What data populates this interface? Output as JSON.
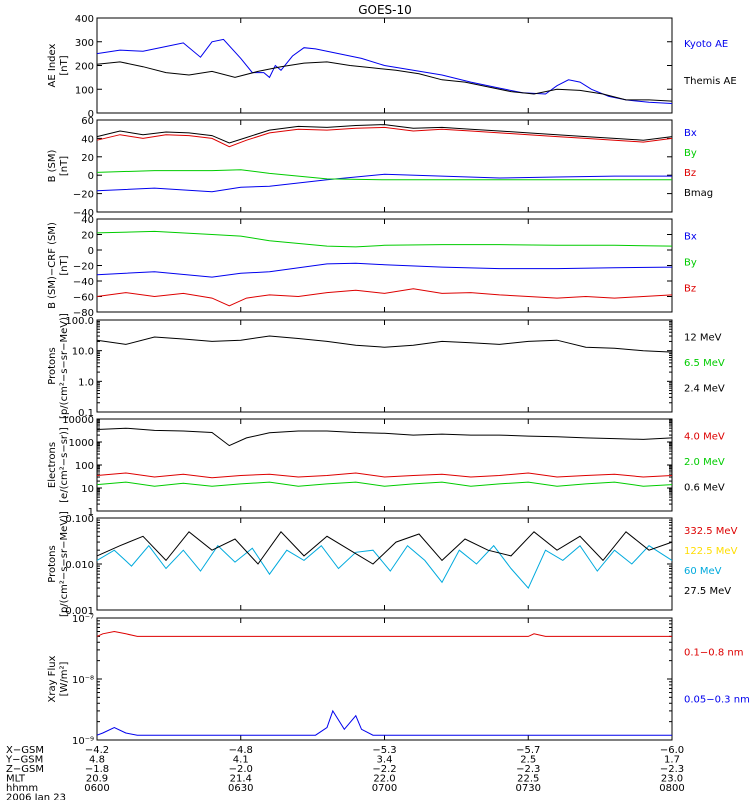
{
  "title": "GOES-10",
  "chart_data": [
    {
      "type": "line",
      "ylabel": [
        "AE Index",
        "[nT]"
      ],
      "ylim": [
        0,
        400
      ],
      "yscale": "linear",
      "yticks": [
        0,
        100,
        200,
        300,
        400
      ],
      "ytick_labels": [
        "0",
        "100",
        "200",
        "300",
        "400"
      ],
      "series": [
        {
          "name": "Kyoto AE",
          "color": "#0000ee",
          "x": [
            0,
            4,
            8,
            12,
            15,
            18,
            20,
            22,
            25,
            27,
            29,
            30,
            31,
            32,
            34,
            36,
            38,
            40,
            42,
            46,
            50,
            55,
            60,
            65,
            70,
            74,
            78,
            80,
            82,
            84,
            86,
            89,
            92,
            96,
            100
          ],
          "values": [
            250,
            265,
            260,
            280,
            295,
            235,
            300,
            310,
            230,
            170,
            170,
            150,
            200,
            180,
            240,
            275,
            270,
            260,
            250,
            230,
            200,
            180,
            160,
            130,
            105,
            85,
            80,
            115,
            140,
            130,
            100,
            70,
            55,
            45,
            40
          ]
        },
        {
          "name": "Themis AE",
          "color": "#000000",
          "x": [
            0,
            4,
            8,
            12,
            16,
            20,
            24,
            28,
            32,
            36,
            40,
            44,
            48,
            52,
            56,
            60,
            64,
            68,
            72,
            76,
            80,
            84,
            88,
            92,
            96,
            100
          ],
          "values": [
            205,
            215,
            195,
            170,
            160,
            175,
            150,
            175,
            195,
            210,
            215,
            200,
            190,
            180,
            165,
            140,
            130,
            110,
            90,
            80,
            100,
            95,
            80,
            55,
            55,
            50
          ]
        }
      ],
      "legend": [
        "Kyoto AE",
        "Themis AE"
      ]
    },
    {
      "type": "line",
      "ylabel": [
        "B (SM)",
        "[nT]"
      ],
      "ylim": [
        -40,
        60
      ],
      "yscale": "linear",
      "yticks": [
        -40,
        -20,
        0,
        20,
        40,
        60
      ],
      "ytick_labels": [
        "−40",
        "−20",
        "0",
        "20",
        "40",
        "60"
      ],
      "series": [
        {
          "name": "Bx",
          "color": "#0000ee",
          "x": [
            0,
            10,
            20,
            25,
            30,
            40,
            50,
            60,
            70,
            80,
            90,
            100
          ],
          "values": [
            -17,
            -14,
            -18,
            -13,
            -12,
            -5,
            1,
            -1,
            -3,
            -2,
            -1,
            -1
          ]
        },
        {
          "name": "By",
          "color": "#00cc00",
          "x": [
            0,
            10,
            20,
            25,
            30,
            40,
            50,
            60,
            70,
            80,
            90,
            100
          ],
          "values": [
            3,
            5,
            5,
            6,
            2,
            -4,
            -5,
            -5,
            -5,
            -5,
            -5,
            -5
          ]
        },
        {
          "name": "Bz",
          "color": "#dd0000",
          "x": [
            0,
            4,
            8,
            12,
            16,
            20,
            23,
            26,
            30,
            35,
            40,
            45,
            50,
            55,
            60,
            65,
            70,
            75,
            80,
            85,
            90,
            95,
            100
          ],
          "values": [
            38,
            44,
            40,
            44,
            43,
            40,
            31,
            38,
            46,
            50,
            49,
            51,
            52,
            48,
            50,
            48,
            46,
            44,
            42,
            40,
            38,
            36,
            40
          ]
        },
        {
          "name": "Bmag",
          "color": "#000000",
          "x": [
            0,
            4,
            8,
            12,
            16,
            20,
            23,
            26,
            30,
            35,
            40,
            45,
            50,
            55,
            60,
            65,
            70,
            75,
            80,
            85,
            90,
            95,
            100
          ],
          "values": [
            42,
            48,
            44,
            47,
            46,
            43,
            35,
            41,
            49,
            53,
            52,
            54,
            55,
            51,
            52,
            50,
            48,
            46,
            44,
            42,
            40,
            38,
            42
          ]
        }
      ],
      "legend": [
        "Bx",
        "By",
        "Bz",
        "Bmag"
      ]
    },
    {
      "type": "line",
      "ylabel": [
        "B (SM)−CRF (SM)",
        "[nT]"
      ],
      "ylim": [
        -80,
        40
      ],
      "yscale": "linear",
      "yticks": [
        -80,
        -60,
        -40,
        -20,
        0,
        20,
        40
      ],
      "ytick_labels": [
        "−80",
        "−60",
        "−40",
        "−20",
        "0",
        "20",
        "40"
      ],
      "series": [
        {
          "name": "Bx",
          "color": "#0000ee",
          "x": [
            0,
            10,
            20,
            25,
            30,
            40,
            45,
            50,
            60,
            70,
            80,
            90,
            100
          ],
          "values": [
            -32,
            -28,
            -35,
            -30,
            -28,
            -18,
            -17,
            -19,
            -22,
            -24,
            -24,
            -23,
            -22
          ]
        },
        {
          "name": "By",
          "color": "#00cc00",
          "x": [
            0,
            10,
            20,
            25,
            30,
            40,
            45,
            50,
            60,
            70,
            80,
            90,
            100
          ],
          "values": [
            22,
            24,
            20,
            18,
            12,
            5,
            4,
            6,
            7,
            7,
            6,
            6,
            5
          ]
        },
        {
          "name": "Bz",
          "color": "#dd0000",
          "x": [
            0,
            5,
            10,
            15,
            20,
            23,
            26,
            30,
            35,
            40,
            45,
            50,
            55,
            60,
            65,
            70,
            75,
            80,
            85,
            90,
            95,
            100
          ],
          "values": [
            -60,
            -55,
            -60,
            -56,
            -62,
            -72,
            -62,
            -58,
            -60,
            -55,
            -52,
            -56,
            -50,
            -56,
            -55,
            -58,
            -60,
            -62,
            -60,
            -62,
            -60,
            -58
          ]
        }
      ],
      "legend": [
        "Bx",
        "By",
        "Bz"
      ]
    },
    {
      "type": "line",
      "ylabel": [
        "Protons",
        "[p/(cm²−s−sr−MeV)]"
      ],
      "ylim": [
        0.1,
        100
      ],
      "yscale": "log",
      "yticks": [
        0.1,
        1,
        10,
        100
      ],
      "ytick_labels": [
        "0.1",
        "1.0",
        "10.0",
        "100.0"
      ],
      "series": [
        {
          "name": "12 MeV",
          "color": "#000000",
          "x": [
            0,
            5,
            10,
            15,
            20,
            25,
            30,
            35,
            40,
            45,
            50,
            55,
            60,
            65,
            70,
            75,
            80,
            85,
            90,
            95,
            100
          ],
          "values": [
            22,
            16,
            28,
            24,
            20,
            22,
            30,
            25,
            20,
            15,
            13,
            15,
            20,
            18,
            16,
            20,
            22,
            13,
            12,
            10,
            9
          ]
        },
        {
          "name": "6.5 MeV",
          "color": "#00cc00",
          "x": [],
          "values": []
        },
        {
          "name": "2.4 MeV",
          "color": "#000000",
          "x": [],
          "values": []
        }
      ],
      "legend": [
        "12 MeV",
        "6.5 MeV",
        "2.4 MeV"
      ]
    },
    {
      "type": "line",
      "ylabel": [
        "Electrons",
        "[e/(cm²−s−sr)]"
      ],
      "ylim": [
        1,
        10000
      ],
      "yscale": "log",
      "yticks": [
        1,
        10,
        100,
        1000,
        10000
      ],
      "ytick_labels": [
        "1",
        "10",
        "100",
        "1000",
        "10000"
      ],
      "series": [
        {
          "name": "4.0 MeV",
          "color": "#dd0000",
          "x": [
            0,
            5,
            10,
            15,
            20,
            25,
            30,
            35,
            40,
            45,
            50,
            55,
            60,
            65,
            70,
            75,
            80,
            85,
            90,
            95,
            100
          ],
          "values": [
            35,
            45,
            30,
            40,
            28,
            35,
            40,
            30,
            35,
            45,
            30,
            35,
            40,
            30,
            35,
            45,
            30,
            35,
            40,
            30,
            35
          ]
        },
        {
          "name": "2.0 MeV",
          "color": "#00cc00",
          "x": [
            0,
            5,
            10,
            15,
            20,
            25,
            30,
            35,
            40,
            45,
            50,
            55,
            60,
            65,
            70,
            75,
            80,
            85,
            90,
            95,
            100
          ],
          "values": [
            14,
            18,
            12,
            16,
            12,
            15,
            18,
            12,
            15,
            18,
            12,
            15,
            18,
            12,
            15,
            18,
            12,
            15,
            18,
            12,
            14
          ]
        },
        {
          "name": "0.6 MeV",
          "color": "#000000",
          "x": [
            0,
            5,
            10,
            15,
            20,
            23,
            26,
            30,
            35,
            40,
            45,
            50,
            55,
            60,
            65,
            70,
            75,
            80,
            85,
            90,
            95,
            100
          ],
          "values": [
            3500,
            4000,
            3200,
            3000,
            2600,
            700,
            1500,
            2500,
            3000,
            3000,
            2600,
            2400,
            2000,
            2200,
            2000,
            2000,
            1800,
            1700,
            1500,
            1400,
            1300,
            1500
          ]
        }
      ],
      "legend": [
        "4.0 MeV",
        "2.0 MeV",
        "0.6 MeV"
      ]
    },
    {
      "type": "line",
      "ylabel": [
        "Protons",
        "[p/(cm²−s−sr−MeV)]"
      ],
      "ylim": [
        0.001,
        0.1
      ],
      "yscale": "log",
      "yticks": [
        0.001,
        0.01,
        0.1
      ],
      "ytick_labels": [
        "0.001",
        "0.010",
        "0.100"
      ],
      "series": [
        {
          "name": "332.5 MeV",
          "color": "#dd0000",
          "x": [],
          "values": []
        },
        {
          "name": "122.5 MeV",
          "color": "#ffdd00",
          "x": [],
          "values": []
        },
        {
          "name": "60 MeV",
          "color": "#00aadd",
          "x": [
            0,
            3,
            6,
            9,
            12,
            15,
            18,
            21,
            24,
            27,
            30,
            33,
            36,
            39,
            42,
            45,
            48,
            51,
            54,
            57,
            60,
            63,
            66,
            69,
            72,
            75,
            78,
            81,
            84,
            87,
            90,
            93,
            96,
            100
          ],
          "values": [
            0.012,
            0.02,
            0.009,
            0.025,
            0.008,
            0.02,
            0.007,
            0.025,
            0.011,
            0.022,
            0.006,
            0.02,
            0.012,
            0.025,
            0.008,
            0.018,
            0.02,
            0.007,
            0.025,
            0.012,
            0.004,
            0.02,
            0.01,
            0.025,
            0.008,
            0.003,
            0.02,
            0.012,
            0.025,
            0.007,
            0.02,
            0.01,
            0.025,
            0.012
          ]
        },
        {
          "name": "27.5 MeV",
          "color": "#000000",
          "x": [
            0,
            4,
            8,
            12,
            16,
            20,
            24,
            28,
            32,
            36,
            40,
            44,
            48,
            52,
            56,
            60,
            64,
            68,
            72,
            76,
            80,
            84,
            88,
            92,
            96,
            100
          ],
          "values": [
            0.015,
            0.025,
            0.04,
            0.012,
            0.05,
            0.02,
            0.035,
            0.01,
            0.05,
            0.015,
            0.04,
            0.02,
            0.01,
            0.03,
            0.045,
            0.012,
            0.035,
            0.02,
            0.015,
            0.05,
            0.02,
            0.04,
            0.012,
            0.05,
            0.02,
            0.03
          ]
        }
      ],
      "legend": [
        "332.5 MeV",
        "122.5 MeV",
        "60 MeV",
        "27.5 MeV"
      ]
    },
    {
      "type": "line",
      "ylabel": [
        "Xray Flux",
        "[W/m²]"
      ],
      "ylim": [
        1e-09,
        1e-07
      ],
      "yscale": "log",
      "yticks": [
        1e-09,
        1e-08,
        1e-07
      ],
      "ytick_labels": [
        "10⁻⁹",
        "10⁻⁸",
        "10⁻⁷"
      ],
      "series": [
        {
          "name": "0.1−0.8 nm",
          "color": "#dd0000",
          "x": [
            0,
            1,
            3,
            5,
            7,
            9,
            11,
            20,
            30,
            40,
            50,
            60,
            70,
            75,
            76,
            78,
            80,
            85,
            90,
            95,
            100
          ],
          "values": [
            5e-08,
            5.5e-08,
            6e-08,
            5.5e-08,
            5e-08,
            5e-08,
            5e-08,
            5e-08,
            5e-08,
            5e-08,
            5e-08,
            5e-08,
            5e-08,
            5e-08,
            5.5e-08,
            5e-08,
            5e-08,
            5e-08,
            5e-08,
            5e-08,
            5e-08
          ]
        },
        {
          "name": "0.05−0.3 nm",
          "color": "#0000ee",
          "x": [
            0,
            1,
            3,
            5,
            7,
            10,
            20,
            30,
            38,
            40,
            41,
            43,
            45,
            46,
            48,
            50,
            60,
            70,
            80,
            90,
            100
          ],
          "values": [
            1.2e-09,
            1.3e-09,
            1.6e-09,
            1.3e-09,
            1.2e-09,
            1.2e-09,
            1.2e-09,
            1.2e-09,
            1.2e-09,
            1.6e-09,
            3e-09,
            1.5e-09,
            2.5e-09,
            1.5e-09,
            1.2e-09,
            1.2e-09,
            1.2e-09,
            1.2e-09,
            1.2e-09,
            1.2e-09,
            1.2e-09
          ]
        }
      ],
      "legend": [
        "0.1−0.8 nm",
        "0.05−0.3 nm"
      ]
    }
  ],
  "x_axis": {
    "rows": [
      {
        "label": "X−GSM",
        "values": [
          "−4.2",
          "−4.8",
          "−5.3",
          "−5.7",
          "−6.0"
        ]
      },
      {
        "label": "Y−GSM",
        "values": [
          "4.8",
          "4.1",
          "3.4",
          "2.5",
          "1.7"
        ]
      },
      {
        "label": "Z−GSM",
        "values": [
          "−1.8",
          "−2.0",
          "−2.2",
          "−2.3",
          "−2.3"
        ]
      },
      {
        "label": "MLT",
        "values": [
          "20.9",
          "21.4",
          "22.0",
          "22.5",
          "23.0"
        ]
      },
      {
        "label": "hhmm",
        "values": [
          "0600",
          "0630",
          "0700",
          "0730",
          "0800"
        ]
      }
    ],
    "date": "2006 Jan 23"
  }
}
